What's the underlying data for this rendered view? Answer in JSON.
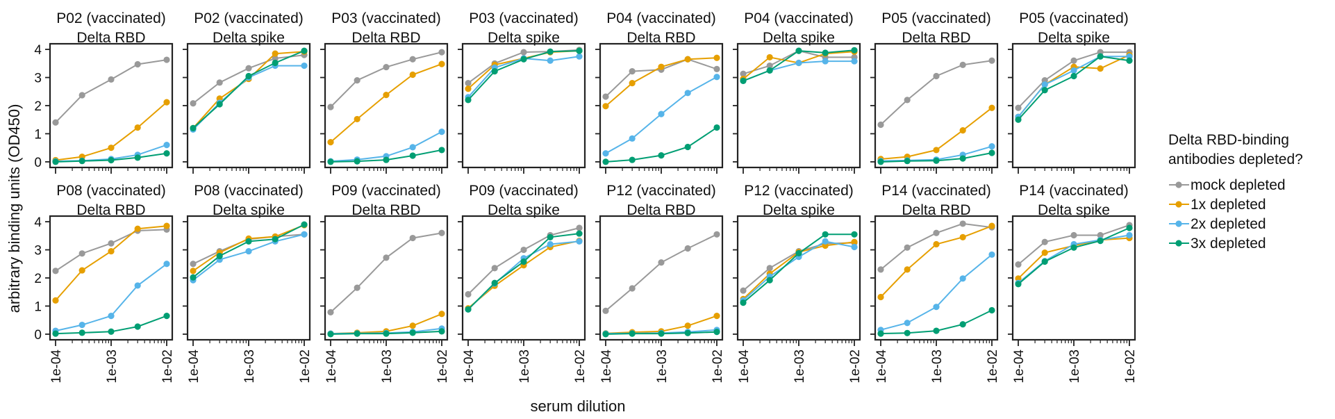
{
  "chart_data": {
    "type": "line",
    "xlabel": "serum dilution",
    "ylabel": "arbitrary binding units (OD450)",
    "x": [
      0.0001,
      0.0003,
      0.001,
      0.003,
      0.01
    ],
    "x_scale": "log",
    "xlim": [
      0.0001,
      0.01
    ],
    "xticks": [
      "1e-04",
      "1e-03",
      "1e-02"
    ],
    "ylim": [
      -0.2,
      4.2
    ],
    "yticks": [
      "0",
      "1",
      "2",
      "3",
      "4"
    ],
    "legend": {
      "title": "Delta RBD-binding\nantibodies depleted?",
      "placement": "right",
      "entries": [
        "mock depleted",
        "1x depleted",
        "2x depleted",
        "3x depleted"
      ]
    },
    "colors": {
      "mock depleted": "#999999",
      "1x depleted": "#E69F00",
      "2x depleted": "#56B4E9",
      "3x depleted": "#009E73"
    },
    "panels": [
      {
        "title": "P02 (vaccinated)\nDelta RBD",
        "series": [
          {
            "name": "mock depleted",
            "values": [
              1.4,
              2.37,
              2.93,
              3.47,
              3.63
            ]
          },
          {
            "name": "1x depleted",
            "values": [
              0.06,
              0.18,
              0.5,
              1.22,
              2.12
            ]
          },
          {
            "name": "2x depleted",
            "values": [
              0.02,
              0.04,
              0.1,
              0.25,
              0.6
            ]
          },
          {
            "name": "3x depleted",
            "values": [
              0.0,
              0.03,
              0.06,
              0.15,
              0.3
            ]
          }
        ]
      },
      {
        "title": "P02 (vaccinated)\nDelta spike",
        "series": [
          {
            "name": "mock depleted",
            "values": [
              2.08,
              2.82,
              3.33,
              3.68,
              3.8
            ]
          },
          {
            "name": "1x depleted",
            "values": [
              1.2,
              2.25,
              2.95,
              3.85,
              3.92
            ]
          },
          {
            "name": "2x depleted",
            "values": [
              1.15,
              2.1,
              3.0,
              3.42,
              3.42
            ]
          },
          {
            "name": "3x depleted",
            "values": [
              1.2,
              2.05,
              3.05,
              3.52,
              3.95
            ]
          }
        ]
      },
      {
        "title": "P03 (vaccinated)\nDelta RBD",
        "series": [
          {
            "name": "mock depleted",
            "values": [
              1.95,
              2.9,
              3.37,
              3.65,
              3.9
            ]
          },
          {
            "name": "1x depleted",
            "values": [
              0.7,
              1.52,
              2.38,
              3.1,
              3.48
            ]
          },
          {
            "name": "2x depleted",
            "values": [
              0.02,
              0.08,
              0.2,
              0.52,
              1.07
            ]
          },
          {
            "name": "3x depleted",
            "values": [
              0.0,
              0.02,
              0.07,
              0.22,
              0.42
            ]
          }
        ]
      },
      {
        "title": "P03 (vaccinated)\nDelta spike",
        "series": [
          {
            "name": "mock depleted",
            "values": [
              2.8,
              3.5,
              3.9,
              3.92,
              3.98
            ]
          },
          {
            "name": "1x depleted",
            "values": [
              2.6,
              3.45,
              3.68,
              3.9,
              3.95
            ]
          },
          {
            "name": "2x depleted",
            "values": [
              2.3,
              3.35,
              3.68,
              3.6,
              3.75
            ]
          },
          {
            "name": "3x depleted",
            "values": [
              2.2,
              3.22,
              3.65,
              3.92,
              3.95
            ]
          }
        ]
      },
      {
        "title": "P04 (vaccinated)\nDelta RBD",
        "series": [
          {
            "name": "mock depleted",
            "values": [
              2.32,
              3.22,
              3.28,
              3.65,
              3.3
            ]
          },
          {
            "name": "1x depleted",
            "values": [
              1.98,
              2.8,
              3.38,
              3.65,
              3.7
            ]
          },
          {
            "name": "2x depleted",
            "values": [
              0.3,
              0.83,
              1.7,
              2.45,
              3.02
            ]
          },
          {
            "name": "3x depleted",
            "values": [
              0.0,
              0.07,
              0.23,
              0.53,
              1.22
            ]
          }
        ]
      },
      {
        "title": "P04 (vaccinated)\nDelta spike",
        "series": [
          {
            "name": "mock depleted",
            "values": [
              3.13,
              3.42,
              3.95,
              3.72,
              3.72
            ]
          },
          {
            "name": "1x depleted",
            "values": [
              2.95,
              3.72,
              3.52,
              3.85,
              3.92
            ]
          },
          {
            "name": "2x depleted",
            "values": [
              2.88,
              3.25,
              3.52,
              3.58,
              3.58
            ]
          },
          {
            "name": "3x depleted",
            "values": [
              2.88,
              3.25,
              3.95,
              3.88,
              3.97
            ]
          }
        ]
      },
      {
        "title": "P05 (vaccinated)\nDelta RBD",
        "series": [
          {
            "name": "mock depleted",
            "values": [
              1.32,
              2.2,
              3.05,
              3.45,
              3.6
            ]
          },
          {
            "name": "1x depleted",
            "values": [
              0.1,
              0.18,
              0.42,
              1.12,
              1.92
            ]
          },
          {
            "name": "2x depleted",
            "values": [
              0.03,
              0.05,
              0.08,
              0.25,
              0.55
            ]
          },
          {
            "name": "3x depleted",
            "values": [
              0.0,
              0.03,
              0.04,
              0.12,
              0.32
            ]
          }
        ]
      },
      {
        "title": "P05 (vaccinated)\nDelta spike",
        "series": [
          {
            "name": "mock depleted",
            "values": [
              1.92,
              2.9,
              3.6,
              3.9,
              3.9
            ]
          },
          {
            "name": "1x depleted",
            "values": [
              1.6,
              2.75,
              3.38,
              3.32,
              3.8
            ]
          },
          {
            "name": "2x depleted",
            "values": [
              1.6,
              2.75,
              3.25,
              3.75,
              3.75
            ]
          },
          {
            "name": "3x depleted",
            "values": [
              1.5,
              2.55,
              3.05,
              3.75,
              3.6
            ]
          }
        ]
      },
      {
        "title": "P08 (vaccinated)\nDelta RBD",
        "series": [
          {
            "name": "mock depleted",
            "values": [
              2.25,
              2.87,
              3.23,
              3.68,
              3.72
            ]
          },
          {
            "name": "1x depleted",
            "values": [
              1.2,
              2.27,
              2.95,
              3.75,
              3.85
            ]
          },
          {
            "name": "2x depleted",
            "values": [
              0.12,
              0.33,
              0.65,
              1.73,
              2.5
            ]
          },
          {
            "name": "3x depleted",
            "values": [
              0.02,
              0.05,
              0.09,
              0.27,
              0.65
            ]
          }
        ]
      },
      {
        "title": "P08 (vaccinated)\nDelta spike",
        "series": [
          {
            "name": "mock depleted",
            "values": [
              2.5,
              2.95,
              3.38,
              3.47,
              3.55
            ]
          },
          {
            "name": "1x depleted",
            "values": [
              2.25,
              2.9,
              3.4,
              3.47,
              3.88
            ]
          },
          {
            "name": "2x depleted",
            "values": [
              1.92,
              2.65,
              2.95,
              3.3,
              3.55
            ]
          },
          {
            "name": "3x depleted",
            "values": [
              2.02,
              2.78,
              3.3,
              3.38,
              3.9
            ]
          }
        ]
      },
      {
        "title": "P09 (vaccinated)\nDelta RBD",
        "series": [
          {
            "name": "mock depleted",
            "values": [
              0.78,
              1.65,
              2.72,
              3.42,
              3.6
            ]
          },
          {
            "name": "1x depleted",
            "values": [
              0.02,
              0.05,
              0.1,
              0.3,
              0.72
            ]
          },
          {
            "name": "2x depleted",
            "values": [
              0.02,
              0.03,
              0.04,
              0.08,
              0.2
            ]
          },
          {
            "name": "3x depleted",
            "values": [
              0.0,
              0.02,
              0.02,
              0.05,
              0.1
            ]
          }
        ]
      },
      {
        "title": "P09 (vaccinated)\nDelta spike",
        "series": [
          {
            "name": "mock depleted",
            "values": [
              1.42,
              2.35,
              3.0,
              3.52,
              3.78
            ]
          },
          {
            "name": "1x depleted",
            "values": [
              0.92,
              1.72,
              2.45,
              3.1,
              3.32
            ]
          },
          {
            "name": "2x depleted",
            "values": [
              0.88,
              1.8,
              2.7,
              3.2,
              3.3
            ]
          },
          {
            "name": "3x depleted",
            "values": [
              0.88,
              1.82,
              2.58,
              3.45,
              3.58
            ]
          }
        ]
      },
      {
        "title": "P12 (vaccinated)\nDelta RBD",
        "series": [
          {
            "name": "mock depleted",
            "values": [
              0.83,
              1.63,
              2.55,
              3.05,
              3.55
            ]
          },
          {
            "name": "1x depleted",
            "values": [
              0.03,
              0.07,
              0.1,
              0.3,
              0.65
            ]
          },
          {
            "name": "2x depleted",
            "values": [
              0.02,
              0.03,
              0.04,
              0.08,
              0.15
            ]
          },
          {
            "name": "3x depleted",
            "values": [
              0.0,
              0.02,
              0.02,
              0.04,
              0.08
            ]
          }
        ]
      },
      {
        "title": "P12 (vaccinated)\nDelta spike",
        "series": [
          {
            "name": "mock depleted",
            "values": [
              1.55,
              2.35,
              2.95,
              3.22,
              3.25
            ]
          },
          {
            "name": "1x depleted",
            "values": [
              1.25,
              2.15,
              2.92,
              3.15,
              3.28
            ]
          },
          {
            "name": "2x depleted",
            "values": [
              1.2,
              2.05,
              2.75,
              3.3,
              3.1
            ]
          },
          {
            "name": "3x depleted",
            "values": [
              1.12,
              1.92,
              2.88,
              3.55,
              3.55
            ]
          }
        ]
      },
      {
        "title": "P14 (vaccinated)\nDelta RBD",
        "series": [
          {
            "name": "mock depleted",
            "values": [
              2.3,
              3.08,
              3.6,
              3.93,
              3.8
            ]
          },
          {
            "name": "1x depleted",
            "values": [
              1.32,
              2.3,
              3.2,
              3.45,
              3.85
            ]
          },
          {
            "name": "2x depleted",
            "values": [
              0.15,
              0.4,
              0.97,
              1.98,
              2.83
            ]
          },
          {
            "name": "3x depleted",
            "values": [
              0.02,
              0.04,
              0.12,
              0.35,
              0.85
            ]
          }
        ]
      },
      {
        "title": "P14 (vaccinated)\nDelta spike",
        "series": [
          {
            "name": "mock depleted",
            "values": [
              2.48,
              3.28,
              3.52,
              3.52,
              3.88
            ]
          },
          {
            "name": "1x depleted",
            "values": [
              1.98,
              2.9,
              3.15,
              3.35,
              3.42
            ]
          },
          {
            "name": "2x depleted",
            "values": [
              1.82,
              2.6,
              3.2,
              3.35,
              3.52
            ]
          },
          {
            "name": "3x depleted",
            "values": [
              1.78,
              2.58,
              3.08,
              3.32,
              3.78
            ]
          }
        ]
      }
    ]
  }
}
